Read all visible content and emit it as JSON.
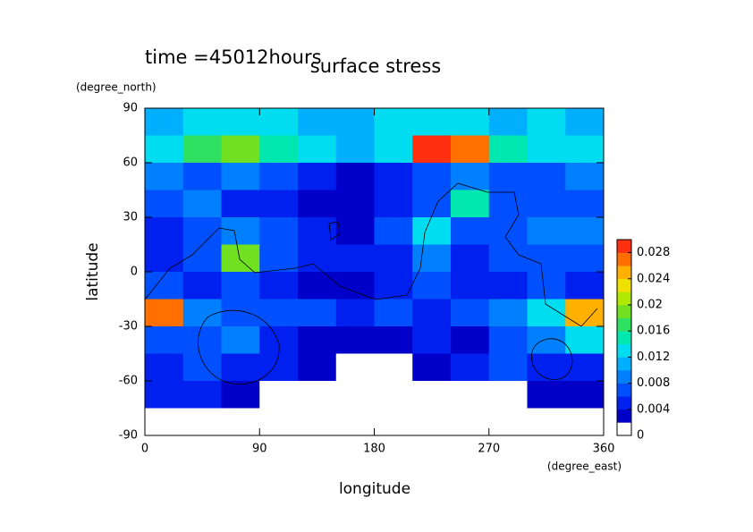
{
  "chart_data": {
    "type": "contour",
    "title": "surface stress",
    "subtitle": "time =45012hours",
    "xlabel": "longitude",
    "xunit": "(degree_east)",
    "ylabel": "latitude",
    "yunit": "(degree_north)",
    "xlim": [
      0,
      360
    ],
    "xticks": [
      0,
      90,
      180,
      270,
      360
    ],
    "ylim": [
      -90,
      90
    ],
    "yticks": [
      -90,
      -60,
      -30,
      0,
      30,
      60,
      90
    ],
    "x": [
      15,
      45,
      75,
      105,
      135,
      165,
      195,
      225,
      255,
      285,
      315,
      345
    ],
    "y": [
      82.5,
      67.5,
      52.5,
      37.5,
      22.5,
      7.5,
      -7.5,
      -22.5,
      -37.5,
      -52.5,
      -67.5,
      -82.5
    ],
    "z": [
      [
        0.01,
        0.012,
        0.012,
        0.012,
        0.01,
        0.01,
        0.012,
        0.012,
        0.012,
        0.01,
        0.012,
        0.01
      ],
      [
        0.012,
        0.016,
        0.018,
        0.014,
        0.012,
        0.01,
        0.012,
        0.028,
        0.026,
        0.014,
        0.012,
        0.012
      ],
      [
        0.008,
        0.006,
        0.008,
        0.006,
        0.004,
        0.002,
        0.004,
        0.006,
        0.008,
        0.006,
        0.006,
        0.008
      ],
      [
        0.006,
        0.008,
        0.004,
        0.004,
        0.002,
        0.002,
        0.004,
        0.006,
        0.014,
        0.006,
        0.006,
        0.006
      ],
      [
        0.004,
        0.006,
        0.008,
        0.006,
        0.004,
        0.002,
        0.006,
        0.012,
        0.006,
        0.006,
        0.008,
        0.008
      ],
      [
        0.004,
        0.006,
        0.018,
        0.006,
        0.004,
        0.004,
        0.004,
        0.008,
        0.004,
        0.006,
        0.006,
        0.006
      ],
      [
        0.006,
        0.004,
        0.006,
        0.004,
        0.002,
        0.002,
        0.004,
        0.006,
        0.004,
        0.004,
        0.006,
        0.004
      ],
      [
        0.026,
        0.008,
        0.006,
        0.006,
        0.006,
        0.004,
        0.006,
        0.004,
        0.006,
        0.008,
        0.012,
        0.024
      ],
      [
        0.006,
        0.006,
        0.008,
        0.004,
        0.002,
        0.002,
        0.002,
        0.004,
        0.002,
        0.006,
        0.008,
        0.012
      ],
      [
        0.004,
        0.006,
        0.004,
        0.004,
        0.002,
        0,
        0,
        0.002,
        0.004,
        0.006,
        0.004,
        0.004
      ],
      [
        0.004,
        0.004,
        0.002,
        0,
        0,
        0,
        0,
        0,
        0,
        0,
        0.002,
        0.002
      ],
      [
        0,
        0,
        0,
        0,
        0,
        0,
        0,
        0,
        0,
        0,
        0,
        0
      ]
    ],
    "levels": [
      0,
      0.002,
      0.004,
      0.006,
      0.008,
      0.01,
      0.012,
      0.014,
      0.016,
      0.018,
      0.02,
      0.022,
      0.024,
      0.026,
      0.028,
      0.03
    ],
    "colors": [
      "#ffffff",
      "#0000c8",
      "#0020f0",
      "#0050ff",
      "#0080ff",
      "#00b0ff",
      "#00dcf0",
      "#00e8b0",
      "#30e060",
      "#70e020",
      "#b0e800",
      "#f0e000",
      "#ffb000",
      "#ff7000",
      "#ff3010"
    ],
    "clim": [
      0,
      0.03
    ],
    "cticks": [
      0,
      0.004,
      0.008,
      0.012,
      0.016,
      0.02,
      0.024,
      0.028
    ]
  }
}
